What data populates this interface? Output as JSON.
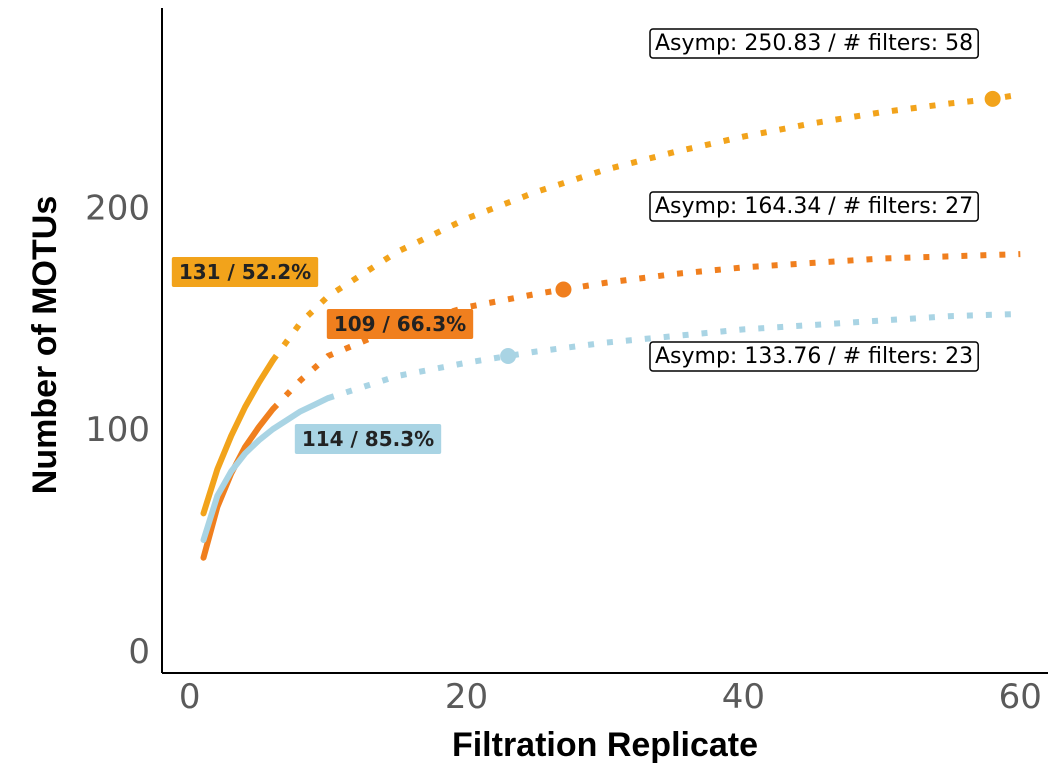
{
  "chart_data": {
    "type": "line",
    "title": "",
    "xlabel": "Filtration Replicate",
    "ylabel": "Number of MOTUs",
    "xlim": [
      -2,
      62
    ],
    "ylim": [
      -10,
      290
    ],
    "xticks": [
      0,
      20,
      40,
      60
    ],
    "yticks": [
      0,
      100,
      200
    ],
    "grid": false,
    "series": [
      {
        "color": "#F2A31B",
        "observed": {
          "x": [
            1,
            2,
            3,
            4,
            5,
            6
          ],
          "y": [
            62,
            82,
            97,
            110,
            121,
            131
          ]
        },
        "extrapolated": {
          "x": [
            6,
            8,
            10,
            15,
            20,
            25,
            30,
            35,
            40,
            45,
            50,
            55,
            58,
            60
          ],
          "y": [
            131,
            148,
            160,
            180,
            195,
            207,
            217,
            225,
            232,
            238,
            243,
            247,
            249,
            251
          ]
        },
        "asymptote_point": {
          "x": 58,
          "y": 249
        },
        "observed_label": "131 / 52.2%",
        "asymptote_label": "Asymp: 250.83 / # filters: 58"
      },
      {
        "color": "#F07F1E",
        "observed": {
          "x": [
            1,
            2,
            3,
            4,
            5,
            6
          ],
          "y": [
            42,
            65,
            80,
            92,
            101,
            109
          ]
        },
        "extrapolated": {
          "x": [
            6,
            8,
            10,
            15,
            20,
            25,
            27,
            30,
            35,
            40,
            45,
            50,
            55,
            60
          ],
          "y": [
            109,
            122,
            133,
            146,
            155,
            161,
            163,
            166,
            170,
            173,
            175,
            177,
            178,
            179
          ]
        },
        "asymptote_point": {
          "x": 27,
          "y": 163
        },
        "observed_label": "109 / 66.3%",
        "asymptote_label": "Asymp: 164.34 / # filters: 27"
      },
      {
        "color": "#A9D4E4",
        "observed": {
          "x": [
            1,
            2,
            3,
            4,
            5,
            6,
            7,
            8,
            9,
            10
          ],
          "y": [
            50,
            70,
            81,
            89,
            95,
            100,
            104,
            108,
            111,
            114
          ]
        },
        "extrapolated": {
          "x": [
            10,
            15,
            20,
            23,
            25,
            30,
            35,
            40,
            45,
            50,
            55,
            60
          ],
          "y": [
            114,
            124,
            130,
            133,
            135,
            139,
            142,
            145,
            147,
            149,
            151,
            152
          ]
        },
        "asymptote_point": {
          "x": 23,
          "y": 133
        },
        "observed_label": "114 / 85.3%",
        "asymptote_label": "Asymp: 133.76 / # filters: 23"
      }
    ]
  }
}
